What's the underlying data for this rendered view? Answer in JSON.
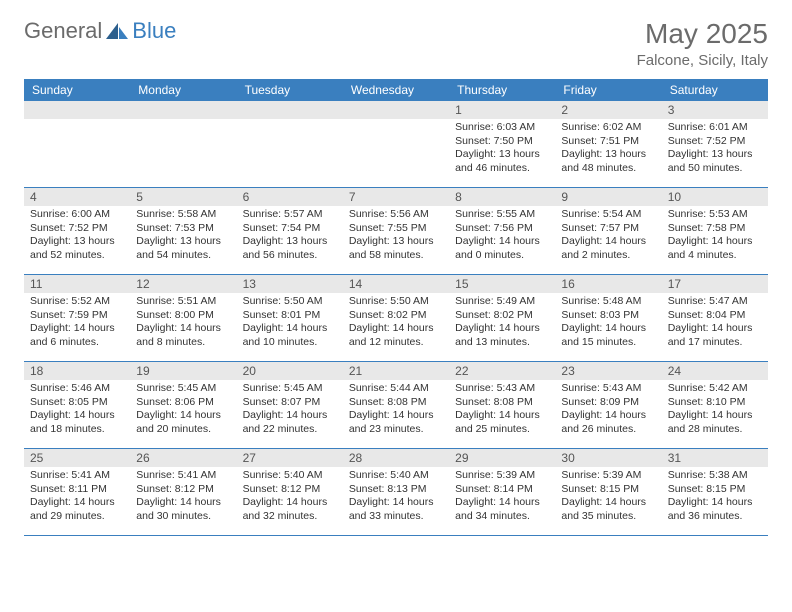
{
  "brand": {
    "part1": "General",
    "part2": "Blue"
  },
  "title": "May 2025",
  "location": "Falcone, Sicily, Italy",
  "colors": {
    "header_bg": "#3a7fbf",
    "header_text": "#ffffff",
    "daynum_bg": "#e8e8e8",
    "text": "#333333",
    "muted": "#6b6b6b"
  },
  "day_labels": [
    "Sunday",
    "Monday",
    "Tuesday",
    "Wednesday",
    "Thursday",
    "Friday",
    "Saturday"
  ],
  "weeks": [
    {
      "nums": [
        "",
        "",
        "",
        "",
        "1",
        "2",
        "3"
      ],
      "cells": [
        {},
        {},
        {},
        {},
        {
          "sunrise": "6:03 AM",
          "sunset": "7:50 PM",
          "daylight": "13 hours and 46 minutes."
        },
        {
          "sunrise": "6:02 AM",
          "sunset": "7:51 PM",
          "daylight": "13 hours and 48 minutes."
        },
        {
          "sunrise": "6:01 AM",
          "sunset": "7:52 PM",
          "daylight": "13 hours and 50 minutes."
        }
      ]
    },
    {
      "nums": [
        "4",
        "5",
        "6",
        "7",
        "8",
        "9",
        "10"
      ],
      "cells": [
        {
          "sunrise": "6:00 AM",
          "sunset": "7:52 PM",
          "daylight": "13 hours and 52 minutes."
        },
        {
          "sunrise": "5:58 AM",
          "sunset": "7:53 PM",
          "daylight": "13 hours and 54 minutes."
        },
        {
          "sunrise": "5:57 AM",
          "sunset": "7:54 PM",
          "daylight": "13 hours and 56 minutes."
        },
        {
          "sunrise": "5:56 AM",
          "sunset": "7:55 PM",
          "daylight": "13 hours and 58 minutes."
        },
        {
          "sunrise": "5:55 AM",
          "sunset": "7:56 PM",
          "daylight": "14 hours and 0 minutes."
        },
        {
          "sunrise": "5:54 AM",
          "sunset": "7:57 PM",
          "daylight": "14 hours and 2 minutes."
        },
        {
          "sunrise": "5:53 AM",
          "sunset": "7:58 PM",
          "daylight": "14 hours and 4 minutes."
        }
      ]
    },
    {
      "nums": [
        "11",
        "12",
        "13",
        "14",
        "15",
        "16",
        "17"
      ],
      "cells": [
        {
          "sunrise": "5:52 AM",
          "sunset": "7:59 PM",
          "daylight": "14 hours and 6 minutes."
        },
        {
          "sunrise": "5:51 AM",
          "sunset": "8:00 PM",
          "daylight": "14 hours and 8 minutes."
        },
        {
          "sunrise": "5:50 AM",
          "sunset": "8:01 PM",
          "daylight": "14 hours and 10 minutes."
        },
        {
          "sunrise": "5:50 AM",
          "sunset": "8:02 PM",
          "daylight": "14 hours and 12 minutes."
        },
        {
          "sunrise": "5:49 AM",
          "sunset": "8:02 PM",
          "daylight": "14 hours and 13 minutes."
        },
        {
          "sunrise": "5:48 AM",
          "sunset": "8:03 PM",
          "daylight": "14 hours and 15 minutes."
        },
        {
          "sunrise": "5:47 AM",
          "sunset": "8:04 PM",
          "daylight": "14 hours and 17 minutes."
        }
      ]
    },
    {
      "nums": [
        "18",
        "19",
        "20",
        "21",
        "22",
        "23",
        "24"
      ],
      "cells": [
        {
          "sunrise": "5:46 AM",
          "sunset": "8:05 PM",
          "daylight": "14 hours and 18 minutes."
        },
        {
          "sunrise": "5:45 AM",
          "sunset": "8:06 PM",
          "daylight": "14 hours and 20 minutes."
        },
        {
          "sunrise": "5:45 AM",
          "sunset": "8:07 PM",
          "daylight": "14 hours and 22 minutes."
        },
        {
          "sunrise": "5:44 AM",
          "sunset": "8:08 PM",
          "daylight": "14 hours and 23 minutes."
        },
        {
          "sunrise": "5:43 AM",
          "sunset": "8:08 PM",
          "daylight": "14 hours and 25 minutes."
        },
        {
          "sunrise": "5:43 AM",
          "sunset": "8:09 PM",
          "daylight": "14 hours and 26 minutes."
        },
        {
          "sunrise": "5:42 AM",
          "sunset": "8:10 PM",
          "daylight": "14 hours and 28 minutes."
        }
      ]
    },
    {
      "nums": [
        "25",
        "26",
        "27",
        "28",
        "29",
        "30",
        "31"
      ],
      "cells": [
        {
          "sunrise": "5:41 AM",
          "sunset": "8:11 PM",
          "daylight": "14 hours and 29 minutes."
        },
        {
          "sunrise": "5:41 AM",
          "sunset": "8:12 PM",
          "daylight": "14 hours and 30 minutes."
        },
        {
          "sunrise": "5:40 AM",
          "sunset": "8:12 PM",
          "daylight": "14 hours and 32 minutes."
        },
        {
          "sunrise": "5:40 AM",
          "sunset": "8:13 PM",
          "daylight": "14 hours and 33 minutes."
        },
        {
          "sunrise": "5:39 AM",
          "sunset": "8:14 PM",
          "daylight": "14 hours and 34 minutes."
        },
        {
          "sunrise": "5:39 AM",
          "sunset": "8:15 PM",
          "daylight": "14 hours and 35 minutes."
        },
        {
          "sunrise": "5:38 AM",
          "sunset": "8:15 PM",
          "daylight": "14 hours and 36 minutes."
        }
      ]
    }
  ],
  "labels": {
    "sunrise": "Sunrise:",
    "sunset": "Sunset:",
    "daylight": "Daylight:"
  }
}
